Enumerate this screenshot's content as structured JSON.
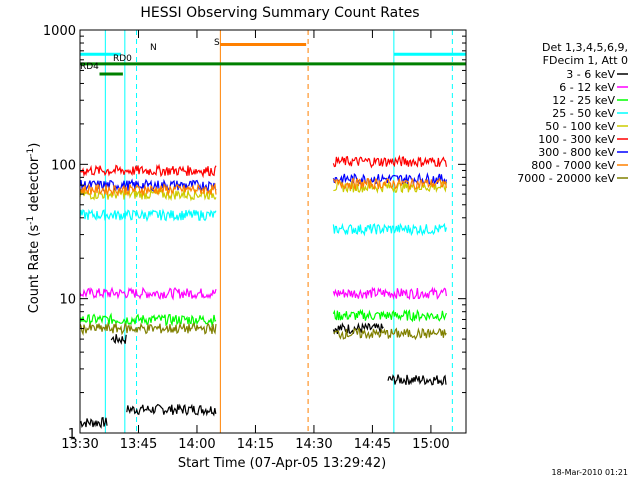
{
  "chart_data": {
    "type": "line",
    "title": "HESSI Observing Summary Count Rates",
    "xlabel": "Start Time (07-Apr-05 13:29:42)",
    "ylabel_main": "Count Rate (s",
    "ylabel_sup1": "-1",
    "ylabel_mid": " detector",
    "ylabel_sup2": "-1",
    "ylabel_end": ")",
    "yscale": "log",
    "ylim": [
      1,
      1000
    ],
    "xlim_minutes": [
      0,
      99
    ],
    "x_ticks": [
      {
        "m": 0,
        "label": "13:30"
      },
      {
        "m": 15,
        "label": "13:45"
      },
      {
        "m": 30,
        "label": "14:00"
      },
      {
        "m": 45,
        "label": "14:15"
      },
      {
        "m": 60,
        "label": "14:30"
      },
      {
        "m": 75,
        "label": "14:45"
      },
      {
        "m": 90,
        "label": "15:00"
      }
    ],
    "y_ticks": [
      {
        "v": 1,
        "label": "1"
      },
      {
        "v": 10,
        "label": "10"
      },
      {
        "v": 100,
        "label": "100"
      },
      {
        "v": 1000,
        "label": "1000"
      }
    ],
    "legend_header": [
      "Det 1,3,4,5,6,9,",
      "FDecim 1, Att 0"
    ],
    "series": [
      {
        "name": "3 - 6 keV",
        "color": "#000000",
        "segs": [
          [
            0,
            7,
            1.2
          ],
          [
            8,
            12,
            5
          ],
          [
            12,
            35,
            1.5
          ],
          [
            65,
            78,
            6
          ],
          [
            79,
            94,
            2.5
          ]
        ]
      },
      {
        "name": "6 - 12 keV",
        "color": "#ff00ff",
        "segs": [
          [
            0,
            35,
            11
          ],
          [
            65,
            94,
            11
          ]
        ]
      },
      {
        "name": "12 - 25 keV",
        "color": "#00ff00",
        "segs": [
          [
            0,
            35,
            7
          ],
          [
            65,
            94,
            7.5
          ]
        ]
      },
      {
        "name": "25 - 50 keV",
        "color": "#00ffff",
        "segs": [
          [
            0,
            35,
            42
          ],
          [
            65,
            94,
            33
          ]
        ]
      },
      {
        "name": "50 - 100 keV",
        "color": "#cccc00",
        "segs": [
          [
            0,
            35,
            60
          ],
          [
            65,
            94,
            68
          ]
        ]
      },
      {
        "name": "100 - 300 keV",
        "color": "#ff0000",
        "segs": [
          [
            0,
            35,
            90
          ],
          [
            65,
            94,
            105
          ]
        ]
      },
      {
        "name": "300 - 800 keV",
        "color": "#0000ff",
        "segs": [
          [
            0,
            35,
            70
          ],
          [
            65,
            94,
            78
          ]
        ]
      },
      {
        "name": "800 - 7000 keV",
        "color": "#ff8000",
        "segs": [
          [
            0,
            35,
            65
          ],
          [
            65,
            94,
            72
          ]
        ]
      },
      {
        "name": "7000 - 20000 keV",
        "color": "#808000",
        "segs": [
          [
            0,
            35,
            6
          ],
          [
            65,
            94,
            5.5
          ]
        ]
      }
    ],
    "state_bars": [
      {
        "label": "N",
        "color": "#00ffff",
        "segs": [
          [
            0,
            10.5
          ],
          [
            80.5,
            99
          ]
        ],
        "y": 660
      },
      {
        "label": "S",
        "color": "#ff8000",
        "segs": [
          [
            36,
            58
          ]
        ],
        "y": 780
      },
      {
        "label": "RD0",
        "color": "#008000",
        "segs": [
          [
            0,
            99
          ]
        ],
        "y": 560
      },
      {
        "label": "RD4",
        "color": "#008000",
        "segs": [
          [
            5,
            11
          ]
        ],
        "y": 470
      }
    ],
    "vlines": [
      {
        "m": 0,
        "color": "#00ffff",
        "dash": false
      },
      {
        "m": 6.5,
        "color": "#00ffff",
        "dash": false
      },
      {
        "m": 11.5,
        "color": "#00ffff",
        "dash": false
      },
      {
        "m": 14.5,
        "color": "#00ffff",
        "dash": true
      },
      {
        "m": 36,
        "color": "#ff8000",
        "dash": false
      },
      {
        "m": 58.5,
        "color": "#ff8000",
        "dash": true
      },
      {
        "m": 80.5,
        "color": "#00ffff",
        "dash": false
      },
      {
        "m": 95.5,
        "color": "#00ffff",
        "dash": true
      }
    ]
  },
  "footer_date": "18-Mar-2010 01:21"
}
